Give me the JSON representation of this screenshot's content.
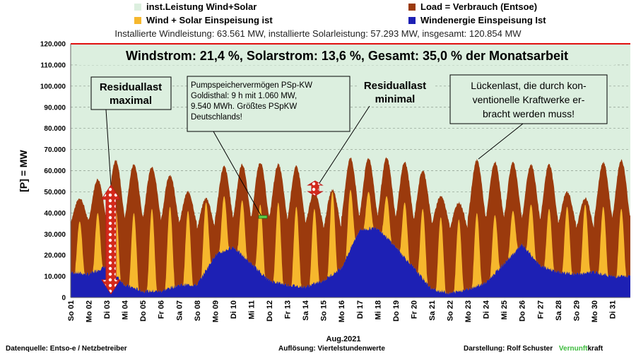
{
  "legend": [
    {
      "label": "inst.Leistung Wind+Solar",
      "color": "#dcefdf"
    },
    {
      "label": "Load =  Verbrauch (Entsoe)",
      "color": "#9b3a0d"
    },
    {
      "label": "Wind + Solar Einspeisung ist",
      "color": "#f6b72d"
    },
    {
      "label": "Windenergie Einspeisung Ist",
      "color": "#1d20b4"
    }
  ],
  "subtitle": "Installierte Windleistung: 63.561 MW, installierte Solarleistung: 57.293 MW, insgesamt: 120.854 MW",
  "footer": {
    "source": "Datenquelle: Entso-e  / Netzbetreiber",
    "resolution": "Auflösung: Viertelstundenwerte",
    "author": "Darstellung: Rolf Schuster",
    "brand_a": "Vernunft",
    "brand_b": "kraft"
  },
  "chart_data": {
    "type": "area",
    "title": "Windstrom: 21,4 %, Solarstrom: 13,6 %, Gesamt: 35,0 % der Monatsarbeit",
    "xlabel": "Aug.2021",
    "ylabel": "[P] = MW",
    "ylim": [
      0,
      120000
    ],
    "y_ticks": [
      "0",
      "10.000",
      "20.000",
      "30.000",
      "40.000",
      "50.000",
      "60.000",
      "70.000",
      "80.000",
      "90.000",
      "100.000",
      "110.000",
      "120.000"
    ],
    "x_ticks": [
      "So 01",
      "Mo 02",
      "Di 03",
      "Mi 04",
      "Do 05",
      "Fr 06",
      "Sa 07",
      "So 08",
      "Mo 09",
      "Di 10",
      "Mi 11",
      "Do 12",
      "Fr 13",
      "Sa 14",
      "So 15",
      "Mo 16",
      "Di 17",
      "Mi 18",
      "Do 19",
      "Fr 20",
      "Sa 21",
      "So 22",
      "Mo 23",
      "Di 24",
      "Mi 25",
      "Do 26",
      "Fr 27",
      "Sa 28",
      "So 29",
      "Mo 30",
      "Di 31"
    ],
    "grid": true,
    "installed_capacity_mw": 120854,
    "series": [
      {
        "name": "Load =  Verbrauch (Entsoe)",
        "peak_mw": [
          47000,
          56000,
          65000,
          63000,
          62000,
          58000,
          50000,
          47000,
          62000,
          63000,
          64000,
          63000,
          62000,
          50000,
          51000,
          66000,
          66000,
          66000,
          64000,
          60000,
          48000,
          45000,
          65000,
          64000,
          64000,
          63000,
          63000,
          50000,
          47000,
          64000,
          65000
        ],
        "trough_mw": [
          36000,
          37000,
          38000,
          38000,
          38000,
          37000,
          35000,
          33000,
          38000,
          38000,
          38000,
          38000,
          37000,
          35000,
          33000,
          38000,
          39000,
          39000,
          38000,
          37000,
          35000,
          33000,
          38000,
          38000,
          38000,
          38000,
          37000,
          35000,
          33000,
          38000,
          38000
        ]
      },
      {
        "name": "Wind + Solar Einspeisung ist",
        "peak_mw": [
          36000,
          40000,
          42000,
          40000,
          42000,
          43000,
          41000,
          45000,
          48000,
          46000,
          44000,
          45000,
          43000,
          42000,
          50000,
          51000,
          50000,
          48000,
          45000,
          42000,
          38000,
          37000,
          40000,
          39000,
          41000,
          44000,
          42000,
          43000,
          44000,
          43000,
          42000
        ]
      },
      {
        "name": "Windenergie Einspeisung Ist",
        "level_mw": [
          12000,
          11000,
          15000,
          6000,
          3000,
          3000,
          6000,
          6000,
          20000,
          24000,
          16000,
          8000,
          6000,
          5000,
          8000,
          14000,
          32000,
          33000,
          24000,
          14000,
          4000,
          2000,
          4000,
          7000,
          16000,
          25000,
          15000,
          12000,
          11000,
          12000,
          10000
        ]
      }
    ],
    "annotations": [
      {
        "text": "Residuallast\nmaximal"
      },
      {
        "text": "Pumpspeichervermögen PSp-KW\nGoldisthal: 9 h mit 1.060 MW,\n9.540 MWh. Größtes PSpKW\nDeutschlands!"
      },
      {
        "text": "Residuallast\nminimal"
      },
      {
        "text": "Lückenlast, die durch kon-\nventionelle Kraftwerke er-\nbracht werden muss!"
      }
    ]
  }
}
